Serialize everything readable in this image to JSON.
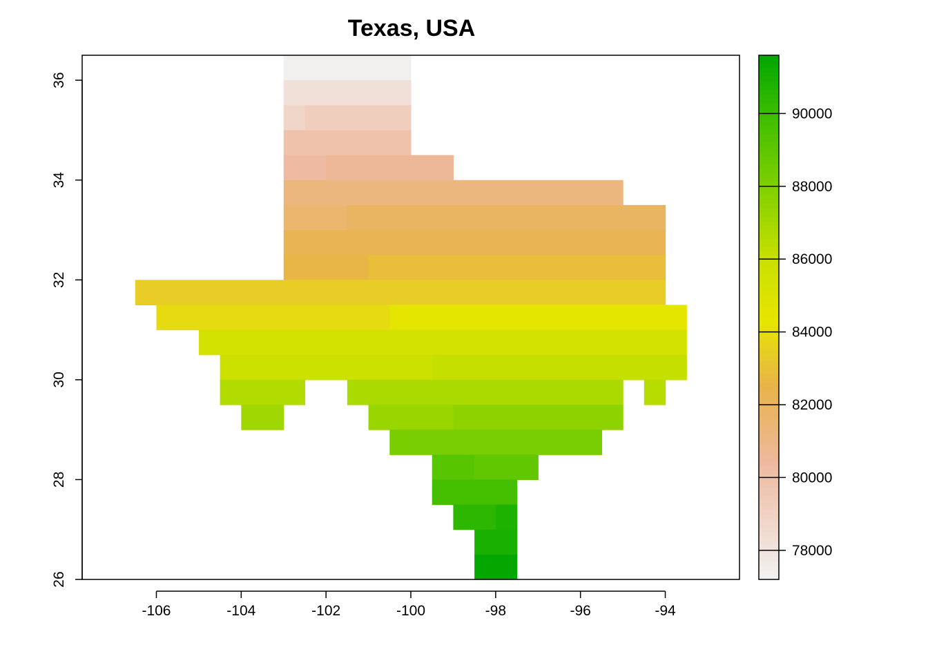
{
  "title": "Texas, USA",
  "chart_data": {
    "type": "heatmap",
    "title": "Texas, USA",
    "xlabel": "",
    "ylabel": "",
    "xlim": [
      -107.75,
      -92.25
    ],
    "ylim": [
      26,
      36.5
    ],
    "cell_size": 0.5,
    "x_ticks": [
      -106,
      -104,
      -102,
      -100,
      -98,
      -96,
      -94
    ],
    "y_ticks": [
      26,
      28,
      30,
      32,
      34,
      36
    ],
    "legend": {
      "placement": "right",
      "min": 77200,
      "max": 91600,
      "ticks": [
        78000,
        80000,
        82000,
        84000,
        86000,
        88000,
        90000
      ],
      "tick_labels": [
        "78000",
        "80000",
        "82000",
        "84000",
        "86000",
        "88000",
        "90000"
      ],
      "color_stops": [
        {
          "value": 77200,
          "color": "#f2f2f2"
        },
        {
          "value": 80400,
          "color": "#eeb99f"
        },
        {
          "value": 82500,
          "color": "#e8b34a"
        },
        {
          "value": 84300,
          "color": "#e6e600"
        },
        {
          "value": 86000,
          "color": "#c8e000"
        },
        {
          "value": 88000,
          "color": "#7fd000"
        },
        {
          "value": 90000,
          "color": "#3cbd00"
        },
        {
          "value": 91600,
          "color": "#00a600"
        }
      ]
    },
    "rows": [
      {
        "lat": 36.25,
        "segments": [
          {
            "from": -103.0,
            "to": -100.0,
            "value": 77300
          }
        ]
      },
      {
        "lat": 35.75,
        "segments": [
          {
            "from": -103.0,
            "to": -100.0,
            "value": 78200
          }
        ]
      },
      {
        "lat": 35.25,
        "segments": [
          {
            "from": -103.0,
            "to": -102.5,
            "value": 78800
          },
          {
            "from": -102.5,
            "to": -100.0,
            "value": 79200
          }
        ]
      },
      {
        "lat": 34.75,
        "segments": [
          {
            "from": -103.0,
            "to": -100.0,
            "value": 79900
          }
        ]
      },
      {
        "lat": 34.25,
        "segments": [
          {
            "from": -103.0,
            "to": -102.0,
            "value": 80300
          },
          {
            "from": -102.0,
            "to": -99.0,
            "value": 80600
          }
        ]
      },
      {
        "lat": 33.75,
        "segments": [
          {
            "from": -103.0,
            "to": -95.0,
            "value": 81200
          }
        ]
      },
      {
        "lat": 33.25,
        "segments": [
          {
            "from": -103.0,
            "to": -101.5,
            "value": 81600
          },
          {
            "from": -101.5,
            "to": -94.0,
            "value": 81900
          }
        ]
      },
      {
        "lat": 32.75,
        "segments": [
          {
            "from": -103.0,
            "to": -94.0,
            "value": 82300
          }
        ]
      },
      {
        "lat": 32.25,
        "segments": [
          {
            "from": -103.0,
            "to": -101.0,
            "value": 82600
          },
          {
            "from": -101.0,
            "to": -94.0,
            "value": 82900
          }
        ]
      },
      {
        "lat": 31.75,
        "segments": [
          {
            "from": -106.5,
            "to": -94.0,
            "value": 83400
          }
        ]
      },
      {
        "lat": 31.25,
        "segments": [
          {
            "from": -106.0,
            "to": -100.5,
            "value": 83900
          },
          {
            "from": -100.5,
            "to": -93.5,
            "value": 84400
          }
        ]
      },
      {
        "lat": 30.75,
        "segments": [
          {
            "from": -105.0,
            "to": -93.5,
            "value": 85300
          }
        ]
      },
      {
        "lat": 30.25,
        "segments": [
          {
            "from": -104.5,
            "to": -99.5,
            "value": 85800
          },
          {
            "from": -99.5,
            "to": -93.5,
            "value": 86100
          }
        ]
      },
      {
        "lat": 29.75,
        "segments": [
          {
            "from": -104.5,
            "to": -102.5,
            "value": 86600
          },
          {
            "from": -101.5,
            "to": -95.0,
            "value": 86800
          },
          {
            "from": -94.5,
            "to": -94.0,
            "value": 86500
          }
        ]
      },
      {
        "lat": 29.25,
        "segments": [
          {
            "from": -104.0,
            "to": -103.0,
            "value": 87100
          },
          {
            "from": -101.0,
            "to": -99.0,
            "value": 87300
          },
          {
            "from": -99.0,
            "to": -95.0,
            "value": 87600
          }
        ]
      },
      {
        "lat": 28.75,
        "segments": [
          {
            "from": -100.5,
            "to": -95.5,
            "value": 88200
          }
        ]
      },
      {
        "lat": 28.25,
        "segments": [
          {
            "from": -99.5,
            "to": -98.5,
            "value": 89200
          },
          {
            "from": -98.5,
            "to": -97.0,
            "value": 88900
          }
        ]
      },
      {
        "lat": 27.75,
        "segments": [
          {
            "from": -99.5,
            "to": -97.5,
            "value": 89800
          }
        ]
      },
      {
        "lat": 27.25,
        "segments": [
          {
            "from": -99.0,
            "to": -98.0,
            "value": 90400
          },
          {
            "from": -98.0,
            "to": -97.5,
            "value": 90800
          }
        ]
      },
      {
        "lat": 26.75,
        "segments": [
          {
            "from": -98.5,
            "to": -97.5,
            "value": 90900
          }
        ]
      },
      {
        "lat": 26.25,
        "segments": [
          {
            "from": -98.5,
            "to": -97.5,
            "value": 91500
          }
        ]
      }
    ]
  }
}
